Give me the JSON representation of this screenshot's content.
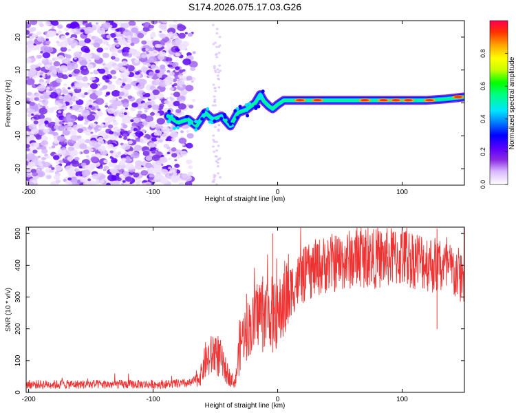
{
  "title": "S174.2026.075.17.03.G26",
  "chart_data": [
    {
      "type": "heatmap",
      "name": "spectrogram",
      "xlabel": "Height of straight line (km)",
      "ylabel": "Frequency (Hz)",
      "xlim": [
        -202,
        150
      ],
      "ylim": [
        -25,
        25
      ],
      "xticks": [
        -200,
        -100,
        0,
        100
      ],
      "yticks": [
        -20,
        -10,
        0,
        10,
        20
      ],
      "colorbar": {
        "label": "Normalized spectral amplitude",
        "range": [
          0,
          1
        ],
        "ticks": [
          "0.0",
          "0.2",
          "0.4",
          "0.6",
          "0.8"
        ],
        "colors": [
          "#ffffff",
          "#d9b8ff",
          "#8a2be2",
          "#5a00ff",
          "#0000ff",
          "#0080ff",
          "#00e5ff",
          "#00ff80",
          "#00ff00",
          "#c8ff00",
          "#ffff00",
          "#ffa500",
          "#ff3000",
          "#ff0050"
        ]
      },
      "signal_track": [
        {
          "x": -88,
          "f": -4
        },
        {
          "x": -80,
          "f": -6
        },
        {
          "x": -72,
          "f": -5
        },
        {
          "x": -65,
          "f": -7
        },
        {
          "x": -58,
          "f": -3
        },
        {
          "x": -52,
          "f": -5
        },
        {
          "x": -45,
          "f": -4
        },
        {
          "x": -38,
          "f": -7
        },
        {
          "x": -32,
          "f": -3
        },
        {
          "x": -25,
          "f": -2
        },
        {
          "x": -18,
          "f": 0
        },
        {
          "x": -14,
          "f": 2.5
        },
        {
          "x": -11,
          "f": 0.5
        },
        {
          "x": -7,
          "f": -1
        },
        {
          "x": -4,
          "f": -1.8
        },
        {
          "x": 0,
          "f": -0.5
        },
        {
          "x": 5,
          "f": 0.8
        },
        {
          "x": 20,
          "f": 0.8
        },
        {
          "x": 40,
          "f": 0.8
        },
        {
          "x": 60,
          "f": 0.8
        },
        {
          "x": 80,
          "f": 0.8
        },
        {
          "x": 100,
          "f": 0.8
        },
        {
          "x": 120,
          "f": 0.8
        },
        {
          "x": 135,
          "f": 1.2
        },
        {
          "x": 150,
          "f": 1.8
        }
      ]
    },
    {
      "type": "line",
      "name": "snr",
      "xlabel": "Height of straight line (km)",
      "ylabel": "SNR (10 * v/v)",
      "xlim": [
        -202,
        150
      ],
      "ylim": [
        0,
        520
      ],
      "xticks": [
        -200,
        -100,
        0,
        100
      ],
      "yticks": [
        0,
        100,
        200,
        300,
        400,
        500
      ],
      "line_color": "#ee3333",
      "series": [
        {
          "name": "SNR envelope",
          "points": [
            [
              -202,
              25
            ],
            [
              -150,
              25
            ],
            [
              -100,
              25
            ],
            [
              -70,
              28
            ],
            [
              -62,
              50
            ],
            [
              -58,
              100
            ],
            [
              -54,
              110
            ],
            [
              -50,
              130
            ],
            [
              -46,
              105
            ],
            [
              -42,
              70
            ],
            [
              -38,
              45
            ],
            [
              -34,
              30
            ],
            [
              -30,
              160
            ],
            [
              -25,
              200
            ],
            [
              -20,
              210
            ],
            [
              -15,
              260
            ],
            [
              -10,
              250
            ],
            [
              -5,
              255
            ],
            [
              0,
              235
            ],
            [
              5,
              285
            ],
            [
              10,
              320
            ],
            [
              20,
              365
            ],
            [
              30,
              390
            ],
            [
              40,
              405
            ],
            [
              50,
              410
            ],
            [
              60,
              420
            ],
            [
              70,
              425
            ],
            [
              80,
              420
            ],
            [
              90,
              425
            ],
            [
              100,
              425
            ],
            [
              110,
              420
            ],
            [
              120,
              410
            ],
            [
              130,
              395
            ],
            [
              140,
              380
            ],
            [
              150,
              360
            ]
          ]
        }
      ]
    }
  ]
}
